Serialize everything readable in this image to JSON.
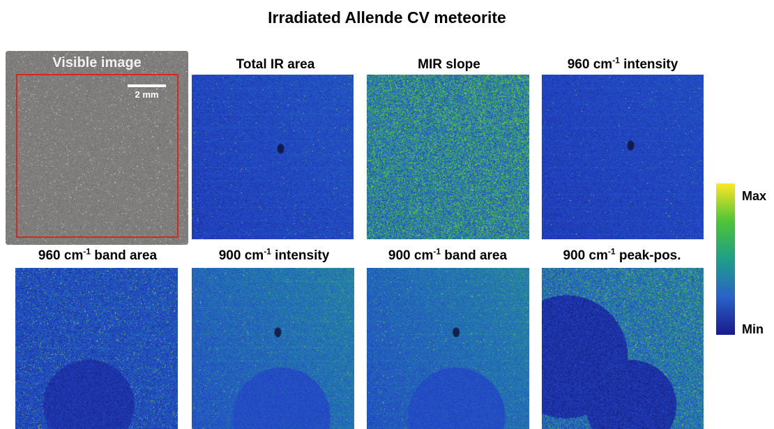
{
  "title": "Irradiated Allende CV meteorite",
  "panels": [
    {
      "name": "visible",
      "title": "Visible image",
      "scale_label": "2 mm"
    },
    {
      "name": "total-ir-area",
      "title_main": "Total IR area",
      "title_sup": "",
      "title_tail": ""
    },
    {
      "name": "mir-slope",
      "title_main": "MIR slope",
      "title_sup": "",
      "title_tail": ""
    },
    {
      "name": "960-intensity",
      "title_main": "960 cm",
      "title_sup": "-1",
      "title_tail": " intensity"
    },
    {
      "name": "960-band-area",
      "title_main": "960 cm",
      "title_sup": "-1",
      "title_tail": " band area"
    },
    {
      "name": "900-intensity",
      "title_main": "900 cm",
      "title_sup": "-1",
      "title_tail": " intensity"
    },
    {
      "name": "900-band-area",
      "title_main": "900 cm",
      "title_sup": "-1",
      "title_tail": " band area"
    },
    {
      "name": "900-peak-pos",
      "title_main": "900 cm",
      "title_sup": "-1",
      "title_tail": " peak-pos."
    }
  ],
  "colorbar": {
    "max_label": "Max",
    "min_label": "Min",
    "colors": [
      "#fde725",
      "#4ec436",
      "#1f9e89",
      "#2a62c8",
      "#1a1a8c"
    ]
  }
}
